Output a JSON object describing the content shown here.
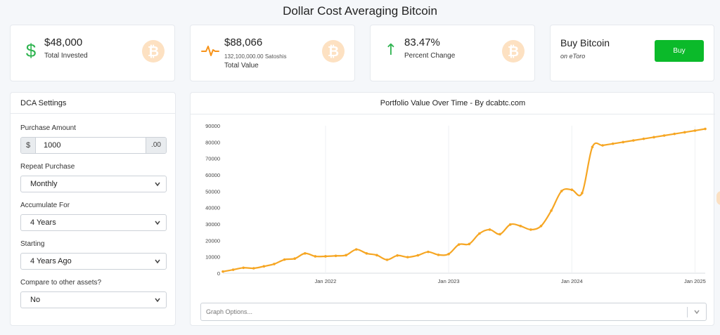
{
  "page": {
    "title": "Dollar Cost Averaging Bitcoin"
  },
  "stats": [
    {
      "value": "$48,000",
      "label": "Total Invested",
      "icon": "dollar-icon",
      "icon_glyph": "$",
      "icon_color": "#2fb450"
    },
    {
      "value": "$88,066",
      "sub": "132,100,000.00 Satoshis",
      "label": "Total Value",
      "icon": "pulse-icon",
      "icon_color": "#f7931a"
    },
    {
      "value": "83.47%",
      "label": "Percent Change",
      "icon": "arrow-up-icon",
      "icon_glyph": "↑",
      "icon_color": "#2fb450"
    }
  ],
  "coin_glyph": "₿",
  "buy": {
    "title": "Buy Bitcoin",
    "subtitle": "on eToro",
    "button_label": "Buy",
    "button_color": "#0bba2a"
  },
  "settings": {
    "title": "DCA Settings",
    "purchase_amount": {
      "label": "Purchase Amount",
      "prefix": "$",
      "value": "1000",
      "suffix": ".00"
    },
    "repeat_purchase": {
      "label": "Repeat Purchase",
      "value": "Monthly"
    },
    "accumulate_for": {
      "label": "Accumulate For",
      "value": "4 Years"
    },
    "starting": {
      "label": "Starting",
      "value": "4 Years Ago"
    },
    "compare": {
      "label": "Compare to other assets?",
      "value": "No"
    }
  },
  "chart": {
    "title": "Portfolio Value Over Time - By dcabtc.com",
    "graph_options_placeholder": "Graph Options..."
  },
  "chart_data": {
    "type": "line",
    "title": "Portfolio Value Over Time - By dcabtc.com",
    "color": "#f6a623",
    "ylim": [
      0,
      90000
    ],
    "yticks": [
      0,
      10000,
      20000,
      30000,
      40000,
      50000,
      60000,
      70000,
      80000,
      90000
    ],
    "xtick_labels": [
      "Jan 2022",
      "Jan 2023",
      "Jan 2024",
      "Jan 2025"
    ],
    "xtick_index": [
      10,
      22,
      34,
      46
    ],
    "grid": true,
    "values": [
      1000,
      2100,
      3300,
      3000,
      4200,
      5600,
      8300,
      8900,
      12100,
      10300,
      10300,
      10600,
      11000,
      14500,
      12100,
      11000,
      8200,
      10800,
      9800,
      10900,
      13000,
      11200,
      11700,
      17500,
      17800,
      24200,
      26600,
      23800,
      29700,
      28800,
      26600,
      28800,
      38200,
      50100,
      50900,
      48900,
      77000,
      78000,
      79000,
      80000,
      81000,
      82000,
      83000,
      84000,
      85000,
      86000,
      87000,
      88066
    ]
  }
}
